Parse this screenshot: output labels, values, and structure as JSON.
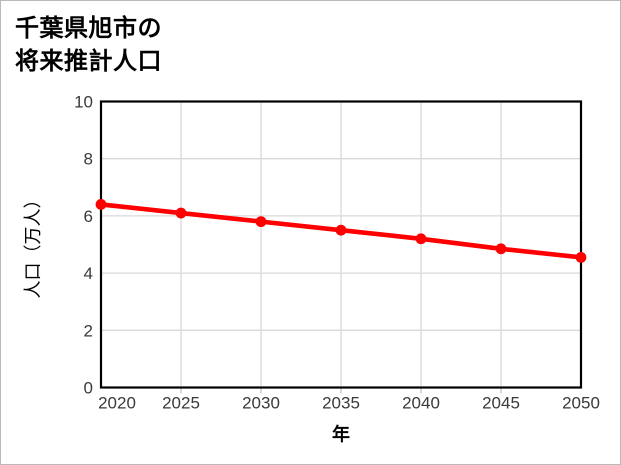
{
  "window": {
    "background": "#ffffff",
    "border_color": "#b9b9b9"
  },
  "title": {
    "line1": "千葉県旭市の",
    "line2": "将来推計人口"
  },
  "chart_data": {
    "type": "line",
    "title": "千葉県旭市の将来推計人口",
    "xlabel": "年",
    "ylabel": "人口（万人）",
    "x": [
      2020,
      2025,
      2030,
      2035,
      2040,
      2045,
      2050
    ],
    "series": [
      {
        "name": "将来推計人口",
        "values": [
          6.4,
          6.1,
          5.8,
          5.5,
          5.2,
          4.85,
          4.55
        ]
      }
    ],
    "xtick_labels": [
      "2020",
      "2025",
      "2030",
      "2035",
      "2040",
      "2045",
      "2050"
    ],
    "ytick_values": [
      0,
      2,
      4,
      6,
      8,
      10
    ],
    "xlim": [
      2020,
      2050
    ],
    "ylim": [
      0,
      10
    ],
    "grid": true,
    "legend_position": "none",
    "colors": {
      "line": "#ff0000",
      "marker": "#ff0000",
      "grid": "#d9d9d9",
      "axis_frame": "#000000",
      "tick_label": "#3a3a3a",
      "axis_title": "#000000",
      "tick_mark": "#c8c8c8"
    },
    "style": {
      "marker_shape": "circle",
      "boxed_frame": true
    }
  }
}
